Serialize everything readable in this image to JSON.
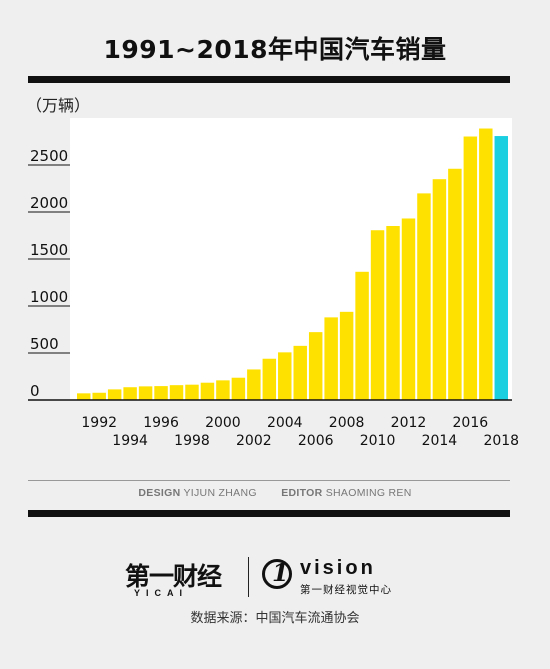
{
  "title": "1991~2018年中国汽车销量",
  "unit_label": "（万辆）",
  "chart_data": {
    "type": "bar",
    "categories": [
      "1991",
      "1992",
      "1993",
      "1994",
      "1995",
      "1996",
      "1997",
      "1998",
      "1999",
      "2000",
      "2001",
      "2002",
      "2003",
      "2004",
      "2005",
      "2006",
      "2007",
      "2008",
      "2009",
      "2010",
      "2011",
      "2012",
      "2013",
      "2014",
      "2015",
      "2016",
      "2017",
      "2018"
    ],
    "values": [
      71,
      77,
      113,
      136,
      145,
      148,
      158,
      163,
      184,
      209,
      237,
      325,
      439,
      507,
      576,
      722,
      879,
      938,
      1364,
      1806,
      1851,
      1931,
      2198,
      2349,
      2460,
      2803,
      2888,
      2808
    ],
    "xtick_labels_upper": [
      "1992",
      "1996",
      "2000",
      "2004",
      "2008",
      "2012",
      "2016"
    ],
    "xtick_labels_lower": [
      "1994",
      "1998",
      "2002",
      "2006",
      "2010",
      "2014",
      "2018"
    ],
    "ytick_labels": [
      "0",
      "500",
      "1000",
      "1500",
      "2000",
      "2500"
    ],
    "ytick_values": [
      0,
      500,
      1000,
      1500,
      2000,
      2500
    ],
    "ylim": [
      0,
      3000
    ],
    "colors": {
      "bar": "#ffe100",
      "highlight_bar": "#1ccfe0",
      "plot_bg": "#ffffff"
    },
    "highlight_category": "2018",
    "grid": false
  },
  "credits": {
    "design_key": "DESIGN",
    "design_name": "YIJUN ZHANG",
    "editor_key": "EDITOR",
    "editor_name": "SHAOMING REN"
  },
  "logos": {
    "yicai_cn": "第一财经",
    "yicai_en": "YICAI",
    "one_mark": "1",
    "vision": "vision",
    "vision_cn": "第一财经视觉中心"
  },
  "source": "数据来源：中国汽车流通协会"
}
